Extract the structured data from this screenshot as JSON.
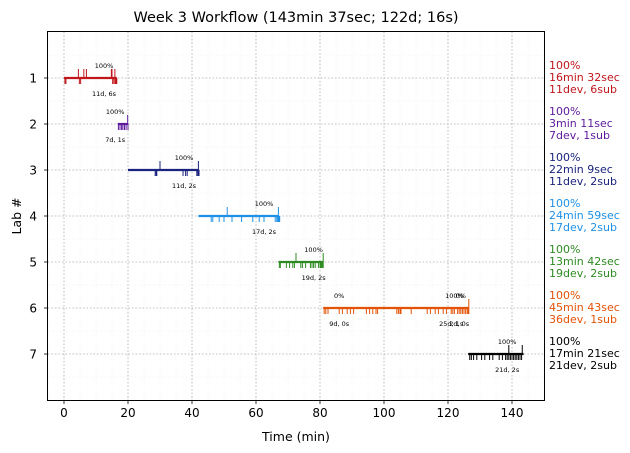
{
  "chart_data": {
    "type": "timeline",
    "title": "Week 3 Workflow (143min 37sec; 122d; 16s)",
    "xlabel": "Time (min)",
    "ylabel": "Lab #",
    "xlim": [
      -5,
      150
    ],
    "ylim": [
      8,
      0
    ],
    "x_ticks": [
      0,
      20,
      40,
      60,
      80,
      100,
      120,
      140
    ],
    "y_ticks": [
      1,
      2,
      3,
      4,
      5,
      6,
      7
    ],
    "grid": true,
    "labs": [
      {
        "lab": 1,
        "color": "#c0161c",
        "start": 0,
        "end": 16.5,
        "dev": [
          0.3,
          0.6,
          4.8,
          5.2,
          15.2,
          15.6,
          16.0,
          16.2,
          16.3,
          16.4,
          16.5
        ],
        "sub": [
          4.5,
          6.2,
          7.0,
          14.8,
          15.0,
          15.9
        ],
        "pct_labels": [
          {
            "x": 12.5,
            "text": "100%"
          }
        ],
        "count_labels": [
          {
            "x": 12.5,
            "text": "11d, 6s"
          }
        ],
        "summary": [
          "100%",
          "16min 32sec",
          "11dev, 6sub"
        ]
      },
      {
        "lab": 2,
        "color": "#5c1a9c",
        "start": 16.8,
        "end": 20.0,
        "dev": [
          17.0,
          17.5,
          18.0,
          18.4,
          18.9,
          19.4,
          20.0
        ],
        "sub": [
          19.9
        ],
        "pct_labels": [
          {
            "x": 16,
            "text": "100%"
          }
        ],
        "count_labels": [
          {
            "x": 16,
            "text": "7d, 1s"
          }
        ],
        "summary": [
          "100%",
          "3min 11sec",
          "7dev, 1sub"
        ]
      },
      {
        "lab": 3,
        "color": "#1a237e",
        "start": 20,
        "end": 42,
        "dev": [
          28.5,
          28.8,
          29.0,
          37.2,
          38.0,
          38.5,
          41.5,
          41.8,
          42.0,
          42.1,
          42.2
        ],
        "sub": [
          30.0,
          42.0
        ],
        "pct_labels": [
          {
            "x": 37.5,
            "text": "100%"
          }
        ],
        "count_labels": [
          {
            "x": 37.5,
            "text": "11d, 2s"
          }
        ],
        "summary": [
          "100%",
          "22min 9sec",
          "11dev, 2sub"
        ]
      },
      {
        "lab": 4,
        "color": "#1e90e6",
        "start": 42,
        "end": 67,
        "dev": [
          46.0,
          46.5,
          48.5,
          50.0,
          52.5,
          55.5,
          59.0,
          61.0,
          62.5,
          66.0,
          66.5,
          66.8,
          67.0,
          67.1,
          67.2,
          67.3,
          67.4
        ],
        "sub": [
          51.0,
          67.0
        ],
        "pct_labels": [
          {
            "x": 62.5,
            "text": "100%"
          }
        ],
        "count_labels": [
          {
            "x": 62.5,
            "text": "17d, 2s"
          }
        ],
        "summary": [
          "100%",
          "24min 59sec",
          "17dev, 2sub"
        ]
      },
      {
        "lab": 5,
        "color": "#2e8b22",
        "start": 67,
        "end": 81,
        "dev": [
          67.3,
          67.6,
          69.5,
          70.5,
          71.5,
          72.0,
          74.0,
          74.5,
          75.5,
          77.0,
          77.5,
          78.0,
          78.5,
          79.5,
          80.0,
          80.3,
          80.6,
          80.8,
          81.0
        ],
        "sub": [
          72.5,
          81.0
        ],
        "pct_labels": [
          {
            "x": 78,
            "text": "100%"
          }
        ],
        "count_labels": [
          {
            "x": 78,
            "text": "19d, 2s"
          }
        ],
        "summary": [
          "100%",
          "13min 42sec",
          "19dev, 2sub"
        ]
      },
      {
        "lab": 6,
        "color": "#e35205",
        "start": 81,
        "end": 126.5,
        "dev": [
          81.3,
          81.8,
          82.5,
          86.0,
          87.0,
          88.5,
          89.5,
          90.5,
          94.5,
          95.5,
          96.5,
          97.5,
          98.0,
          104.0,
          104.5,
          105.0,
          105.3,
          108.5,
          113.5,
          114.5,
          116.0,
          117.0,
          118.5,
          119.5,
          121.0,
          121.5,
          122.0,
          123.0,
          123.5,
          124.0,
          124.5,
          125.0,
          125.5,
          126.0,
          126.3,
          126.5
        ],
        "sub": [
          126.5
        ],
        "pct_labels": [
          {
            "x": 86,
            "text": "0%"
          },
          {
            "x": 122,
            "text": "100%"
          },
          {
            "x": 124,
            "text": "0%"
          }
        ],
        "count_labels": [
          {
            "x": 86,
            "text": "9d, 0s"
          },
          {
            "x": 121,
            "text": "25d, 1s"
          },
          {
            "x": 123.5,
            "text": "2d, 0s"
          }
        ],
        "summary": [
          "100%",
          "45min 43sec",
          "36dev, 1sub"
        ]
      },
      {
        "lab": 7,
        "color": "#000000",
        "start": 126.3,
        "end": 143.6,
        "dev": [
          126.8,
          127.3,
          128.0,
          129.0,
          130.5,
          131.5,
          133.0,
          134.0,
          136.0,
          137.0,
          138.0,
          138.5,
          139.0,
          139.5,
          140.0,
          140.5,
          141.0,
          141.5,
          142.0,
          142.5,
          143.0
        ],
        "sub": [
          139.0,
          143.2
        ],
        "pct_labels": [
          {
            "x": 138.5,
            "text": "100%"
          }
        ],
        "count_labels": [
          {
            "x": 138.5,
            "text": "21d, 2s"
          }
        ],
        "summary": [
          "100%",
          "17min 21sec",
          "21dev, 2sub"
        ]
      }
    ]
  }
}
